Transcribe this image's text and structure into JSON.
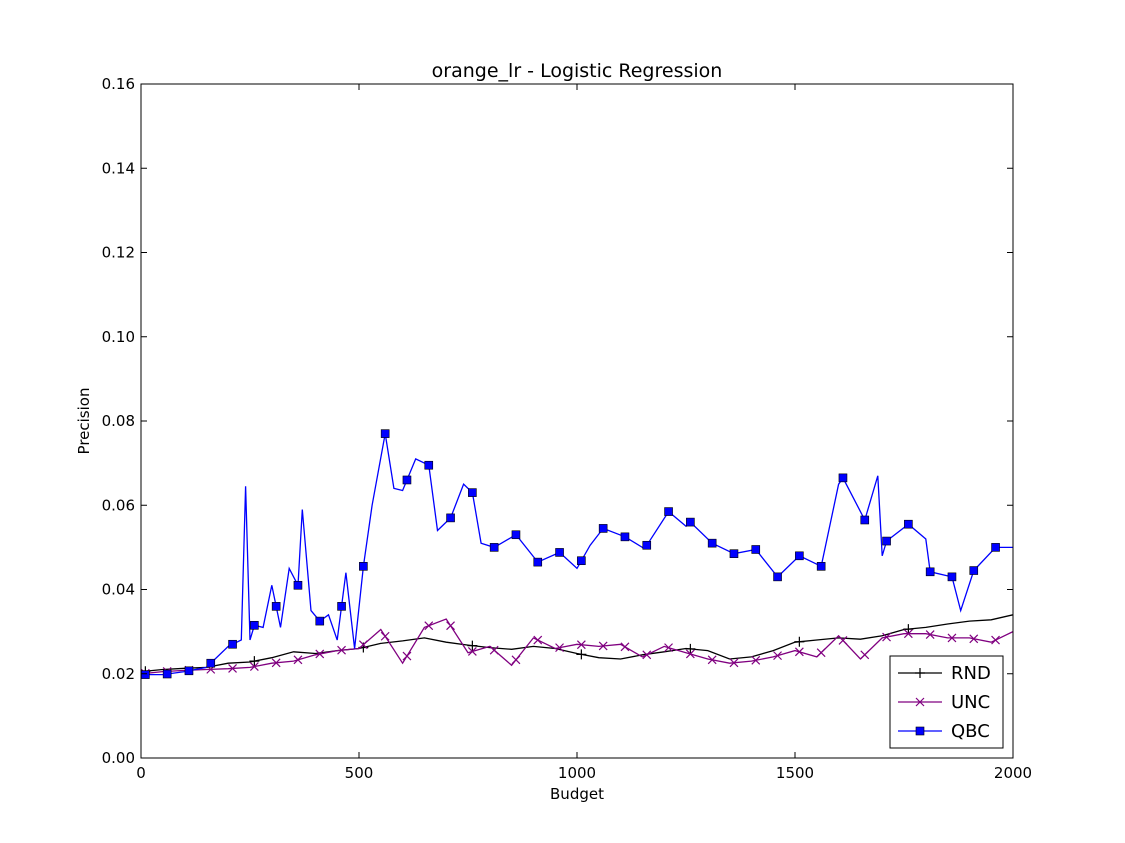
{
  "chart_data": {
    "type": "line",
    "title": "orange_lr - Logistic Regression",
    "xlabel": "Budget",
    "ylabel": "Precision",
    "xlim": [
      0,
      2000
    ],
    "ylim": [
      0,
      0.16
    ],
    "xticks": [
      0,
      500,
      1000,
      1500,
      2000
    ],
    "xtick_labels": [
      "0",
      "500",
      "1000",
      "1500",
      "2000"
    ],
    "yticks": [
      0,
      0.02,
      0.04,
      0.06,
      0.08,
      0.1,
      0.12,
      0.14,
      0.16
    ],
    "ytick_labels": [
      "0.00",
      "0.02",
      "0.04",
      "0.06",
      "0.08",
      "0.10",
      "0.12",
      "0.14",
      "0.16"
    ],
    "grid": false,
    "legend_position": "bottom-right",
    "series": [
      {
        "name": "RND",
        "color": "#000000",
        "marker": "plus",
        "marker_x": [
          10,
          260,
          510,
          760,
          1010,
          1260,
          1510,
          1760
        ],
        "x": [
          0,
          50,
          100,
          150,
          200,
          250,
          300,
          350,
          400,
          450,
          500,
          550,
          600,
          650,
          700,
          750,
          800,
          850,
          900,
          950,
          1000,
          1050,
          1100,
          1150,
          1200,
          1250,
          1300,
          1350,
          1400,
          1450,
          1500,
          1550,
          1600,
          1650,
          1700,
          1750,
          1800,
          1850,
          1900,
          1950,
          2000
        ],
        "y": [
          0.0205,
          0.021,
          0.0213,
          0.0215,
          0.0225,
          0.0228,
          0.0238,
          0.0252,
          0.0248,
          0.0255,
          0.026,
          0.0272,
          0.0278,
          0.0285,
          0.0275,
          0.0268,
          0.0262,
          0.0258,
          0.0265,
          0.026,
          0.0248,
          0.0238,
          0.0235,
          0.0245,
          0.0252,
          0.026,
          0.0255,
          0.0235,
          0.024,
          0.0255,
          0.0275,
          0.028,
          0.0285,
          0.0282,
          0.029,
          0.0305,
          0.031,
          0.0318,
          0.0325,
          0.0328,
          0.034
        ]
      },
      {
        "name": "UNC",
        "color": "#800080",
        "marker": "x",
        "marker_x": [
          10,
          60,
          110,
          160,
          210,
          260,
          310,
          360,
          410,
          460,
          510,
          560,
          610,
          660,
          710,
          760,
          810,
          860,
          910,
          960,
          1010,
          1060,
          1110,
          1160,
          1210,
          1260,
          1310,
          1360,
          1410,
          1460,
          1510,
          1560,
          1610,
          1660,
          1710,
          1760,
          1810,
          1860,
          1910,
          1960
        ],
        "x": [
          0,
          50,
          100,
          150,
          200,
          250,
          300,
          350,
          400,
          450,
          500,
          550,
          600,
          650,
          700,
          750,
          800,
          850,
          900,
          950,
          1000,
          1050,
          1100,
          1150,
          1200,
          1250,
          1300,
          1350,
          1400,
          1450,
          1500,
          1550,
          1600,
          1650,
          1700,
          1750,
          1800,
          1850,
          1900,
          1950,
          2000
        ],
        "y": [
          0.02,
          0.0205,
          0.0208,
          0.021,
          0.0212,
          0.0215,
          0.0225,
          0.023,
          0.0245,
          0.0255,
          0.026,
          0.0305,
          0.0225,
          0.031,
          0.033,
          0.025,
          0.0265,
          0.022,
          0.0285,
          0.026,
          0.027,
          0.0265,
          0.027,
          0.024,
          0.0265,
          0.025,
          0.0235,
          0.0225,
          0.023,
          0.024,
          0.0255,
          0.024,
          0.029,
          0.0235,
          0.0285,
          0.0295,
          0.0295,
          0.0285,
          0.0285,
          0.0275,
          0.03
        ]
      },
      {
        "name": "QBC",
        "color": "#0000ff",
        "marker": "square",
        "marker_x": [
          10,
          60,
          110,
          160,
          210,
          260,
          310,
          360,
          410,
          460,
          510,
          560,
          610,
          660,
          710,
          760,
          810,
          860,
          910,
          960,
          1010,
          1060,
          1110,
          1160,
          1210,
          1260,
          1310,
          1360,
          1410,
          1460,
          1510,
          1560,
          1610,
          1660,
          1710,
          1760,
          1810,
          1860,
          1910,
          1960
        ],
        "x": [
          0,
          50,
          100,
          150,
          200,
          230,
          240,
          250,
          260,
          280,
          300,
          320,
          340,
          360,
          370,
          390,
          410,
          430,
          450,
          470,
          490,
          510,
          530,
          560,
          580,
          600,
          630,
          660,
          680,
          710,
          740,
          760,
          780,
          810,
          860,
          910,
          960,
          1000,
          1030,
          1060,
          1110,
          1150,
          1160,
          1210,
          1250,
          1260,
          1310,
          1360,
          1410,
          1460,
          1510,
          1560,
          1600,
          1610,
          1660,
          1690,
          1700,
          1710,
          1760,
          1800,
          1810,
          1860,
          1880,
          1910,
          1960,
          2000
        ],
        "y": [
          0.0198,
          0.0198,
          0.0205,
          0.0215,
          0.0265,
          0.028,
          0.0645,
          0.028,
          0.0315,
          0.031,
          0.041,
          0.031,
          0.045,
          0.041,
          0.059,
          0.035,
          0.0325,
          0.034,
          0.028,
          0.044,
          0.026,
          0.0455,
          0.06,
          0.077,
          0.064,
          0.0635,
          0.071,
          0.0695,
          0.054,
          0.057,
          0.065,
          0.063,
          0.051,
          0.05,
          0.053,
          0.0465,
          0.0488,
          0.045,
          0.0505,
          0.0545,
          0.0525,
          0.05,
          0.0505,
          0.0585,
          0.055,
          0.056,
          0.051,
          0.0485,
          0.0495,
          0.043,
          0.048,
          0.0455,
          0.065,
          0.0665,
          0.0565,
          0.067,
          0.048,
          0.0515,
          0.0555,
          0.052,
          0.0442,
          0.043,
          0.035,
          0.0445,
          0.05,
          0.05
        ]
      }
    ]
  }
}
